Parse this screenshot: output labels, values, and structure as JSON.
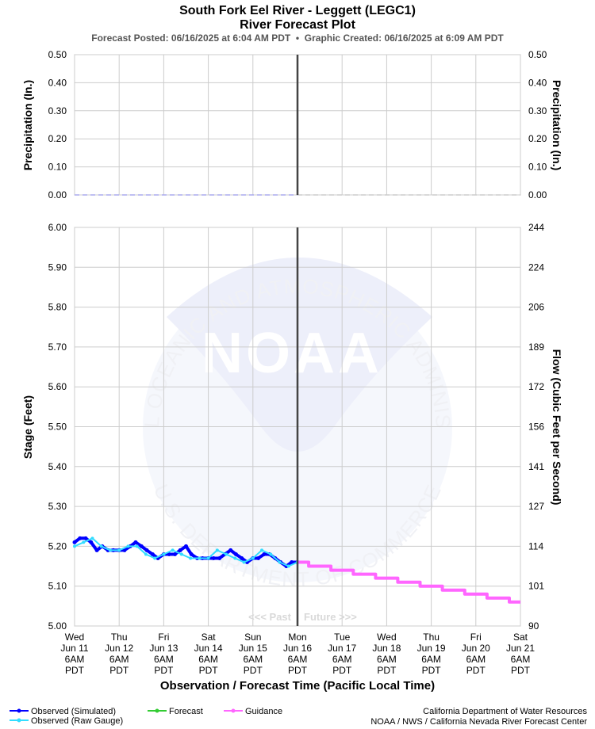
{
  "header": {
    "title": "South Fork Eel River - Leggett (LEGC1)",
    "subtitle": "River Forecast Plot",
    "posted": "Forecast Posted: 06/16/2025 at 6:04 AM PDT  •  Graphic Created: 06/16/2025 at 6:09 AM PDT"
  },
  "watermark": {
    "logo_text": "NOAA",
    "ring_top": "NATIONAL OCEANIC AND ATMOSPHERIC ADMINISTRATION",
    "ring_bottom": "U.S. DEPARTMENT OF COMMERCE"
  },
  "past_label": "<<< Past",
  "future_label": "Future >>>",
  "xlabel": "Observation / Forecast Time (Pacific Local Time)",
  "x_ticks": [
    {
      "day": "Wed",
      "date": "Jun 11",
      "time": "6AM",
      "tz": "PDT"
    },
    {
      "day": "Thu",
      "date": "Jun 12",
      "time": "6AM",
      "tz": "PDT"
    },
    {
      "day": "Fri",
      "date": "Jun 13",
      "time": "6AM",
      "tz": "PDT"
    },
    {
      "day": "Sat",
      "date": "Jun 14",
      "time": "6AM",
      "tz": "PDT"
    },
    {
      "day": "Sun",
      "date": "Jun 15",
      "time": "6AM",
      "tz": "PDT"
    },
    {
      "day": "Mon",
      "date": "Jun 16",
      "time": "6AM",
      "tz": "PDT"
    },
    {
      "day": "Tue",
      "date": "Jun 17",
      "time": "6AM",
      "tz": "PDT"
    },
    {
      "day": "Wed",
      "date": "Jun 18",
      "time": "6AM",
      "tz": "PDT"
    },
    {
      "day": "Thu",
      "date": "Jun 19",
      "time": "6AM",
      "tz": "PDT"
    },
    {
      "day": "Fri",
      "date": "Jun 20",
      "time": "6AM",
      "tz": "PDT"
    },
    {
      "day": "Sat",
      "date": "Jun 21",
      "time": "6AM",
      "tz": "PDT"
    }
  ],
  "legend": [
    {
      "label": "Observed (Simulated)",
      "color": "#0000ff"
    },
    {
      "label": "Observed (Raw Gauge)",
      "color": "#33ddff"
    },
    {
      "label": "Forecast",
      "color": "#33cc33"
    },
    {
      "label": "Guidance",
      "color": "#ff66ff"
    }
  ],
  "credits": {
    "line1": "California Department of Water Resources",
    "line2": "NOAA / NWS / California Nevada River Forecast Center"
  },
  "chart_data": [
    {
      "type": "line",
      "ylabel": "Precipitation (In.)",
      "ylabel_right": "Precipitation (In.)",
      "ylim": [
        0,
        0.5
      ],
      "y_ticks": [
        "0.00",
        "0.10",
        "0.20",
        "0.30",
        "0.40",
        "0.50"
      ],
      "y_ticks_right": [
        "0.00",
        "0.10",
        "0.20",
        "0.30",
        "0.40",
        "0.50"
      ],
      "grid": true,
      "series": [
        {
          "name": "Observed",
          "color": "#aaaaee",
          "x": [
            0,
            5
          ],
          "values": [
            0,
            0
          ]
        },
        {
          "name": "Forecast",
          "color": "#cccccc",
          "x": [
            5,
            10
          ],
          "values": [
            0,
            0
          ]
        }
      ]
    },
    {
      "type": "line",
      "ylabel": "Stage (Feet)",
      "ylabel_right": "Flow (Cubic Feet per Second)",
      "ylim": [
        5.0,
        6.0
      ],
      "y_ticks": [
        "5.00",
        "5.10",
        "5.20",
        "5.30",
        "5.40",
        "5.50",
        "5.60",
        "5.70",
        "5.80",
        "5.90",
        "6.00"
      ],
      "y_ticks_right": [
        "90",
        "101",
        "114",
        "127",
        "141",
        "156",
        "172",
        "189",
        "206",
        "224",
        "244"
      ],
      "x_unit": "days since Wed Jun 11 6AM PDT",
      "grid": true,
      "series": [
        {
          "name": "Observed (Simulated)",
          "color": "#0000ff",
          "x": [
            0.0,
            0.12,
            0.25,
            0.37,
            0.5,
            0.62,
            0.75,
            0.87,
            1.0,
            1.12,
            1.25,
            1.37,
            1.5,
            1.62,
            1.75,
            1.87,
            2.0,
            2.12,
            2.25,
            2.37,
            2.5,
            2.62,
            2.75,
            2.87,
            3.0,
            3.12,
            3.25,
            3.37,
            3.5,
            3.62,
            3.75,
            3.87,
            4.0,
            4.12,
            4.25,
            4.37,
            4.5,
            4.62,
            4.75,
            4.87,
            5.0
          ],
          "values": [
            5.21,
            5.22,
            5.22,
            5.21,
            5.19,
            5.2,
            5.19,
            5.19,
            5.19,
            5.19,
            5.2,
            5.21,
            5.2,
            5.19,
            5.18,
            5.17,
            5.18,
            5.18,
            5.18,
            5.19,
            5.2,
            5.18,
            5.17,
            5.17,
            5.17,
            5.17,
            5.17,
            5.18,
            5.19,
            5.18,
            5.17,
            5.16,
            5.17,
            5.17,
            5.18,
            5.18,
            5.17,
            5.16,
            5.15,
            5.16,
            5.16
          ]
        },
        {
          "name": "Observed (Raw Gauge)",
          "color": "#33ddff",
          "x": [
            0.0,
            0.2,
            0.4,
            0.6,
            0.8,
            1.0,
            1.2,
            1.4,
            1.6,
            1.8,
            2.0,
            2.2,
            2.4,
            2.6,
            2.8,
            3.0,
            3.2,
            3.4,
            3.6,
            3.8,
            4.0,
            4.2,
            4.4,
            4.6,
            4.8,
            5.0
          ],
          "values": [
            5.2,
            5.21,
            5.22,
            5.2,
            5.19,
            5.19,
            5.2,
            5.2,
            5.18,
            5.17,
            5.18,
            5.19,
            5.18,
            5.17,
            5.17,
            5.17,
            5.19,
            5.18,
            5.17,
            5.16,
            5.17,
            5.19,
            5.18,
            5.16,
            5.15,
            5.16
          ]
        },
        {
          "name": "Guidance",
          "color": "#ff66ff",
          "x": [
            5.0,
            5.25,
            5.25,
            5.75,
            5.75,
            6.25,
            6.25,
            6.75,
            6.75,
            7.25,
            7.25,
            7.75,
            7.75,
            8.25,
            8.25,
            8.75,
            8.75,
            9.25,
            9.25,
            9.75,
            9.75,
            10.0
          ],
          "values": [
            5.16,
            5.16,
            5.15,
            5.15,
            5.14,
            5.14,
            5.13,
            5.13,
            5.12,
            5.12,
            5.11,
            5.11,
            5.1,
            5.1,
            5.09,
            5.09,
            5.08,
            5.08,
            5.07,
            5.07,
            5.06,
            5.06
          ]
        }
      ]
    }
  ]
}
